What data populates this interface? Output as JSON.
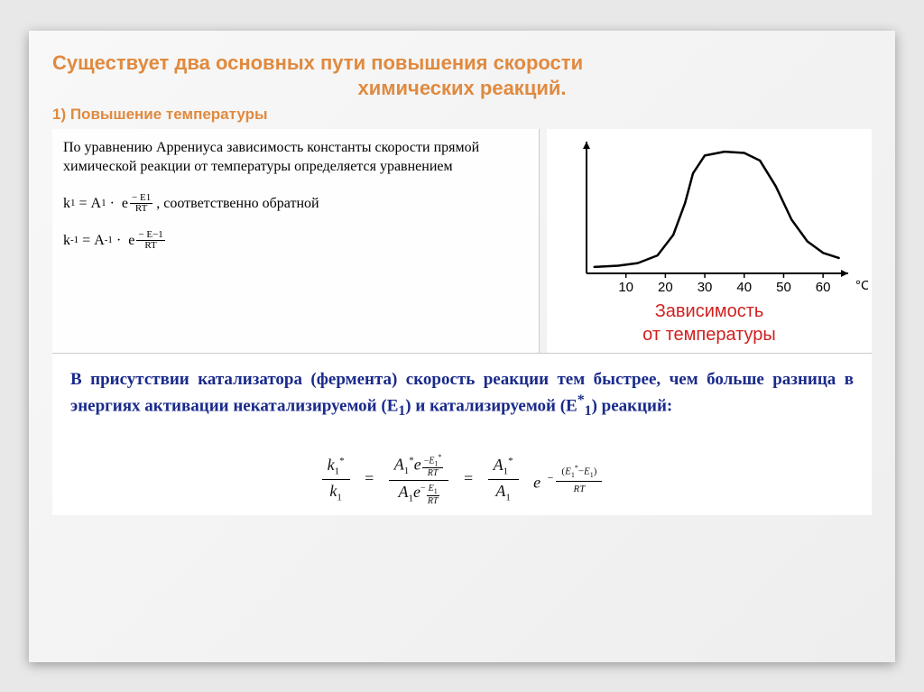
{
  "title": {
    "line1": "Существует два основных пути повышения скорости",
    "line2": "химических реакций.",
    "subtitle": "1) Повышение температуры"
  },
  "arrhenius": {
    "intro": "По уравнению Аррениуса зависимость константы скорости прямой химической реакции от температуры определяется уравнением",
    "eq1_lhs": "k",
    "eq1_sub": "1",
    "eq1_A": "A",
    "eq1_Asub": "1",
    "eq1_expTop": "E1",
    "eq1_expBot": "RT",
    "eq1_after": ",   соответственно обратной",
    "eq2_sub": "-1",
    "eq2_Asub": "-1",
    "eq2_expTop": "E−1",
    "eq2_expBot": "RT"
  },
  "chart": {
    "x_ticks": [
      "10",
      "20",
      "30",
      "40",
      "50",
      "60"
    ],
    "x_unit": "°C",
    "caption1": "Зависимость",
    "caption2": "от температуры",
    "curve_color": "#000000",
    "axis_color": "#000000",
    "xlim": [
      0,
      65
    ],
    "ylim": [
      0,
      100
    ],
    "points": [
      [
        2,
        5
      ],
      [
        8,
        6
      ],
      [
        13,
        8
      ],
      [
        18,
        14
      ],
      [
        22,
        30
      ],
      [
        25,
        55
      ],
      [
        27,
        78
      ],
      [
        30,
        92
      ],
      [
        35,
        95
      ],
      [
        40,
        94
      ],
      [
        44,
        88
      ],
      [
        48,
        68
      ],
      [
        52,
        42
      ],
      [
        56,
        25
      ],
      [
        60,
        16
      ],
      [
        64,
        12
      ]
    ]
  },
  "catalyst": {
    "text_parts": [
      "В присутствии катализатора (фермента)  скорость реакции тем быстрее, чем больше разница в энергиях активации некатализируемой (E",
      ") и катализируемой (E",
      ") реакций:"
    ],
    "sub1": "1",
    "sup2": "*",
    "sub2": "1"
  },
  "final_equation": {
    "labels": {
      "k": "k",
      "A": "A",
      "E": "E",
      "RT": "RT",
      "e": "e",
      "star": "*",
      "one": "1",
      "minus": "−",
      "eq": "="
    }
  },
  "colors": {
    "heading": "#e08a3f",
    "caption": "#d02020",
    "cat_text": "#1a2a8a"
  }
}
